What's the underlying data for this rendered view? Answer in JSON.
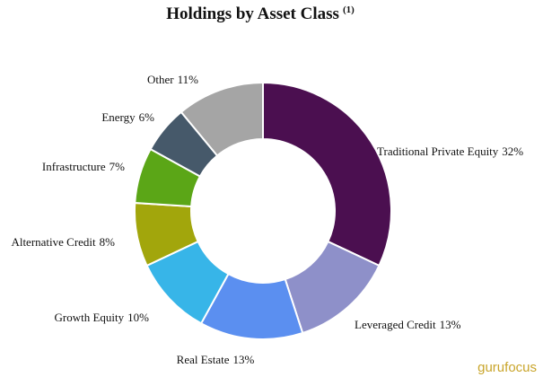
{
  "chart_data": {
    "type": "donut",
    "title": "Holdings by Asset Class",
    "title_note": "(1)",
    "categories": [
      "Traditional Private Equity",
      "Leveraged Credit",
      "Real Estate",
      "Growth Equity",
      "Alternative Credit",
      "Infrastructure",
      "Energy",
      "Other"
    ],
    "values": [
      32,
      13,
      13,
      10,
      8,
      7,
      6,
      11
    ],
    "value_labels": [
      "32%",
      "13%",
      "13%",
      "10%",
      "8%",
      "7%",
      "6%",
      "11%"
    ],
    "colors": [
      "#4b0f50",
      "#8e90c9",
      "#5b8ff0",
      "#37b5e8",
      "#a2a60c",
      "#5ba617",
      "#46596a",
      "#a5a5a5"
    ],
    "watermark": "gurufocus"
  }
}
